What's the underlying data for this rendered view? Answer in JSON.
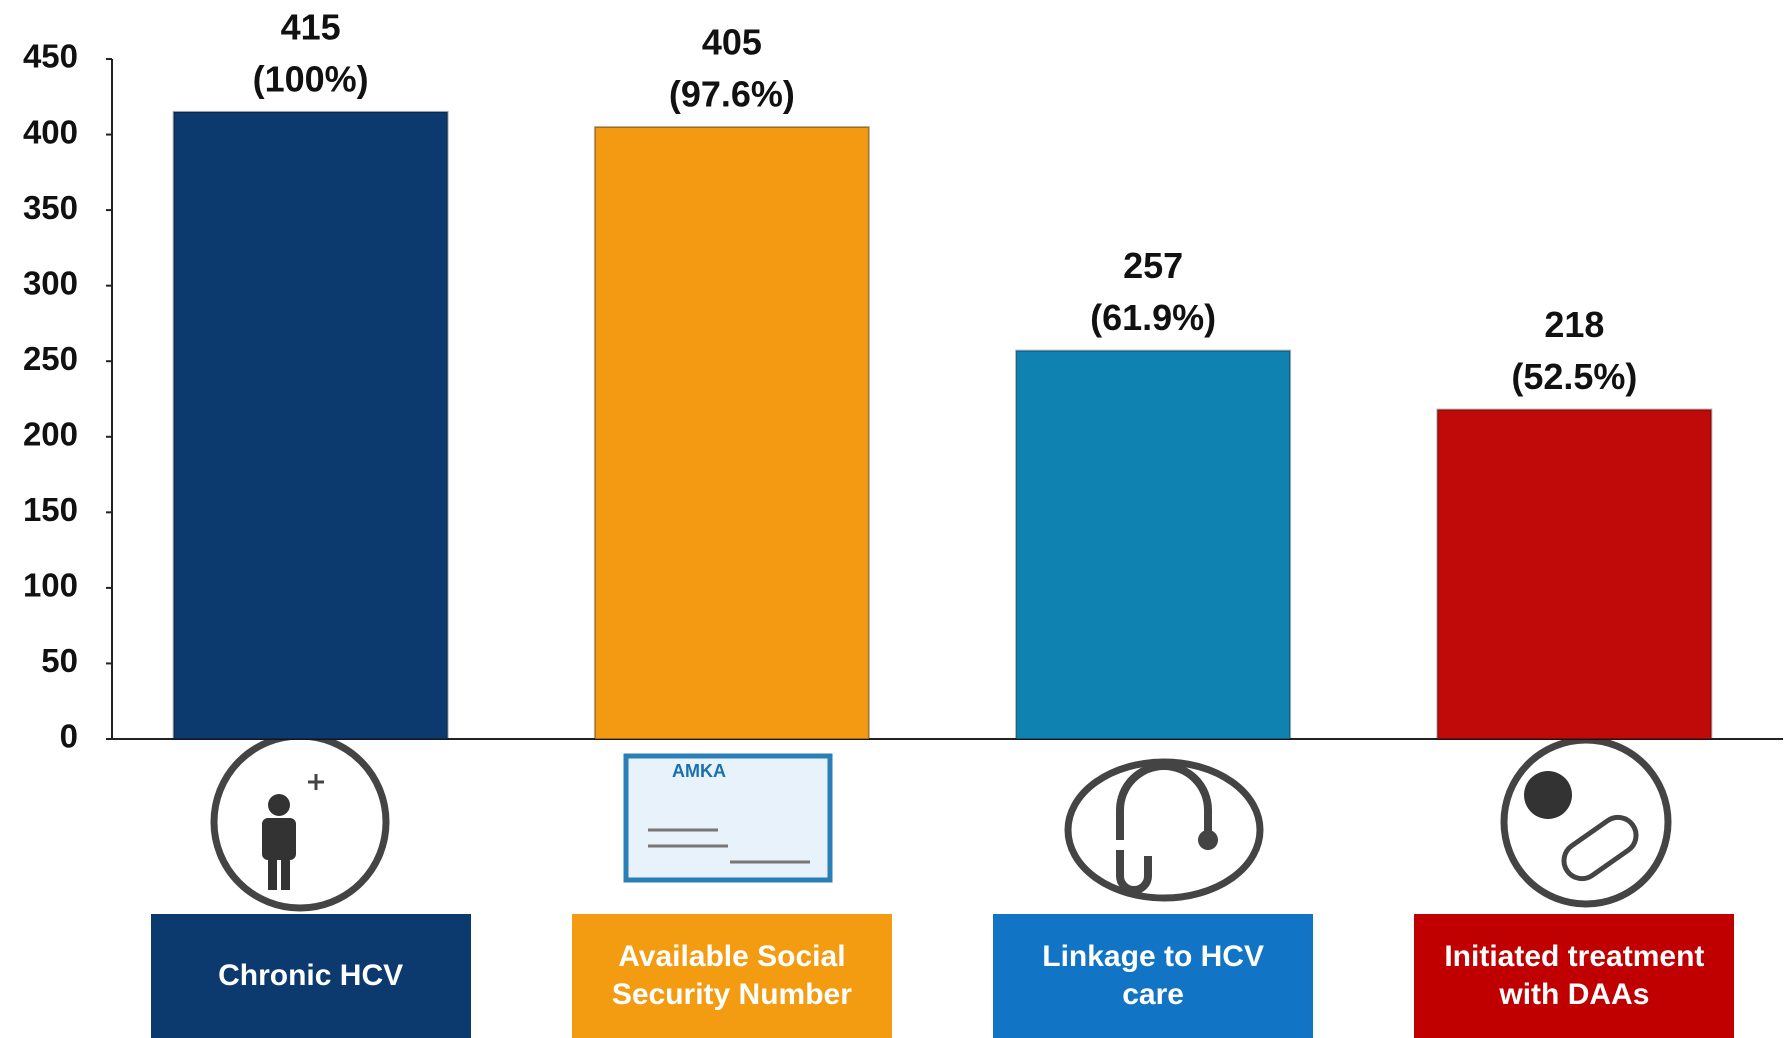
{
  "chart_data": {
    "type": "bar",
    "categories": [
      "Chronic HCV",
      "Available Social Security Number",
      "Linkage to HCV care",
      "Initiated treatment with DAAs"
    ],
    "values": [
      415,
      405,
      257,
      218
    ],
    "share_labels": [
      "(100%)",
      "(97.6%)",
      "(61.9%)",
      "(52.5%)"
    ],
    "colors": [
      "#0d3a6e",
      "#f39a12",
      "#0f82b2",
      "#c00a0a"
    ],
    "box_colors": [
      "#0d3a6e",
      "#f39c12",
      "#1174c4",
      "#c00000"
    ],
    "card_title": "AMKA",
    "ylim": [
      0,
      450
    ],
    "yticks": [
      0,
      50,
      100,
      150,
      200,
      250,
      300,
      350,
      400,
      450
    ],
    "grid": false
  }
}
